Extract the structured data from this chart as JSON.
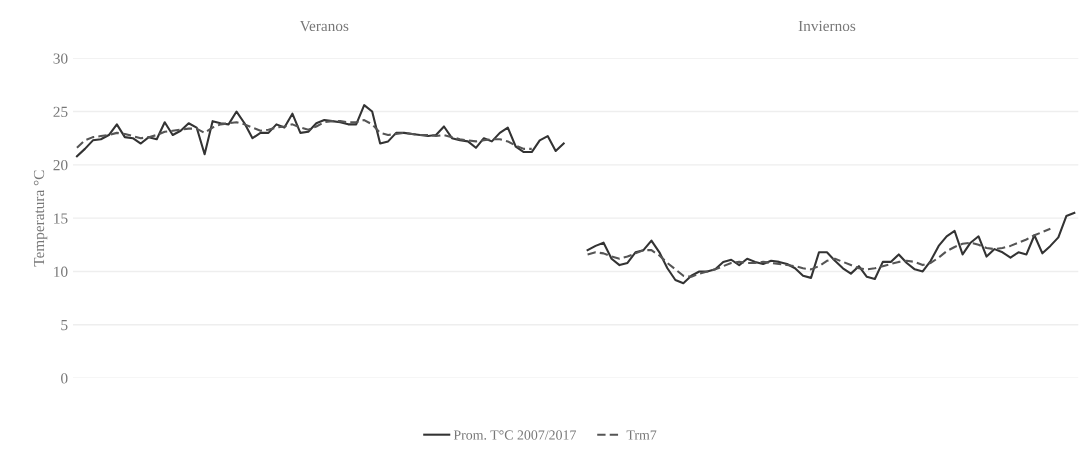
{
  "chart_data": {
    "type": "line",
    "ylabel": "Temperatura °C",
    "annotations": [
      "Veranos",
      "Inviernos"
    ],
    "categories": [
      null,
      null,
      null,
      null,
      null,
      null,
      null,
      null,
      null,
      null,
      null,
      null,
      null,
      null,
      null,
      null,
      null,
      null,
      null,
      null,
      null,
      null,
      null,
      null,
      null,
      null,
      null,
      null,
      null,
      null,
      null,
      null,
      null,
      null,
      null,
      null,
      null,
      null,
      null,
      null,
      null,
      null,
      null,
      null,
      null,
      null,
      null,
      null,
      null,
      null,
      null,
      null,
      null,
      null,
      null,
      null,
      null,
      null,
      null,
      null,
      null,
      null,
      null,
      null,
      null,
      null,
      null,
      null,
      null,
      null,
      null,
      null,
      null,
      null,
      null,
      null,
      null,
      null,
      null,
      null,
      null,
      null,
      null,
      null,
      null,
      null,
      null,
      null,
      null,
      null,
      null,
      null,
      null,
      null,
      null,
      null,
      null,
      null,
      null,
      null,
      null,
      null,
      null,
      null,
      null,
      null,
      null,
      null,
      null,
      null,
      null,
      null,
      null,
      null,
      null,
      null,
      null,
      null,
      null,
      null,
      null,
      null,
      null,
      null,
      null,
      null
    ],
    "series": [
      {
        "name": "Prom. T°C 2007/2017",
        "color": "#333333",
        "line_style": "solid",
        "values": [
          20.8,
          21.5,
          22.3,
          22.4,
          22.8,
          23.8,
          22.6,
          22.5,
          22.0,
          22.6,
          22.4,
          24.0,
          22.8,
          23.2,
          23.9,
          23.5,
          21.0,
          24.1,
          23.9,
          23.8,
          25.0,
          23.9,
          22.5,
          23.0,
          23.0,
          23.8,
          23.5,
          24.8,
          23.0,
          23.1,
          23.9,
          24.2,
          24.1,
          24.0,
          23.8,
          23.8,
          25.6,
          25.0,
          22.0,
          22.2,
          23.0,
          23.0,
          22.9,
          22.8,
          22.7,
          22.8,
          23.6,
          22.5,
          22.3,
          22.2,
          21.6,
          22.5,
          22.2,
          23.0,
          23.5,
          21.7,
          21.2,
          21.2,
          22.3,
          22.7,
          21.3,
          22.0,
          null,
          null,
          12.0,
          12.4,
          12.7,
          11.2,
          10.6,
          10.8,
          11.8,
          12.0,
          12.9,
          11.8,
          10.3,
          9.2,
          8.9,
          9.6,
          10.0,
          10.0,
          10.2,
          10.9,
          11.1,
          10.6,
          11.2,
          10.9,
          10.7,
          11.0,
          10.9,
          10.7,
          10.3,
          9.6,
          9.4,
          11.8,
          11.8,
          11.0,
          10.3,
          9.8,
          10.5,
          9.5,
          9.3,
          10.9,
          10.9,
          11.6,
          10.8,
          10.2,
          10.0,
          11.0,
          12.4,
          13.3,
          13.8,
          11.6,
          12.7,
          13.3,
          11.4,
          12.1,
          11.8,
          11.3,
          11.8,
          11.6,
          13.4,
          11.7,
          12.4,
          13.2,
          15.2,
          15.5
        ]
      },
      {
        "name": "Trm7",
        "color": "#555555",
        "line_style": "dashed",
        "values": [
          21.6,
          22.3,
          22.6,
          22.7,
          22.8,
          23.0,
          22.9,
          22.7,
          22.5,
          22.6,
          22.8,
          23.1,
          23.2,
          23.3,
          23.4,
          23.4,
          23.0,
          23.5,
          23.8,
          23.9,
          24.0,
          23.8,
          23.5,
          23.2,
          23.3,
          23.5,
          23.6,
          23.8,
          23.5,
          23.3,
          23.6,
          24.0,
          24.1,
          24.1,
          24.0,
          24.0,
          24.2,
          23.8,
          23.0,
          22.8,
          22.9,
          23.0,
          22.9,
          22.8,
          22.8,
          22.7,
          22.8,
          22.6,
          22.4,
          22.3,
          22.2,
          22.3,
          22.4,
          22.4,
          22.2,
          21.8,
          21.5,
          21.5,
          null,
          null,
          null,
          null,
          null,
          null,
          11.6,
          11.8,
          11.7,
          11.4,
          11.2,
          11.4,
          11.7,
          12.0,
          12.0,
          11.5,
          10.8,
          10.2,
          9.6,
          9.5,
          9.8,
          10.0,
          10.2,
          10.5,
          10.8,
          10.9,
          10.8,
          10.8,
          10.9,
          10.8,
          10.7,
          10.6,
          10.5,
          10.3,
          10.2,
          10.5,
          11.0,
          11.2,
          10.9,
          10.6,
          10.3,
          10.2,
          10.3,
          10.5,
          10.7,
          10.9,
          11.0,
          10.9,
          10.6,
          10.8,
          11.3,
          11.9,
          12.3,
          12.6,
          12.7,
          12.5,
          12.2,
          12.1,
          12.2,
          12.4,
          12.7,
          13.0,
          13.4,
          13.7,
          14.0,
          null,
          null,
          null
        ]
      }
    ],
    "ylim": [
      0,
      30
    ],
    "yticks": [
      0,
      5,
      10,
      15,
      20,
      25,
      30
    ],
    "grid": "y",
    "legend": "bottom",
    "marker": "none"
  }
}
